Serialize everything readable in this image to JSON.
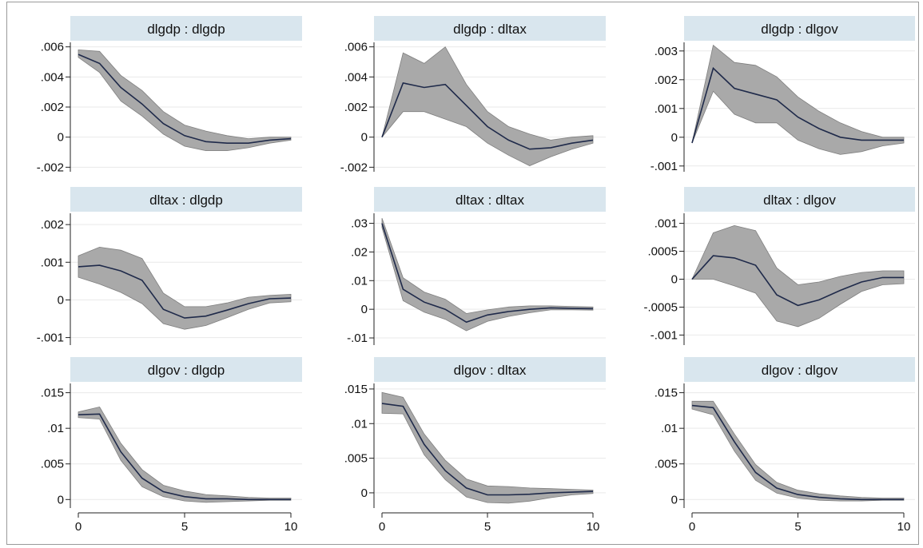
{
  "chart_data": [
    {
      "type": "line",
      "title": "dlgdp : dlgdp",
      "x": [
        0,
        1,
        2,
        3,
        4,
        5,
        6,
        7,
        8,
        9,
        10
      ],
      "series": [
        {
          "values": [
            0.0055,
            0.0049,
            0.0033,
            0.0022,
            0.0009,
            0.0001,
            -0.0003,
            -0.0004,
            -0.0004,
            -0.0002,
            -0.0001
          ]
        }
      ],
      "ci_lower": [
        0.0053,
        0.0043,
        0.0024,
        0.0014,
        0.0002,
        -0.0006,
        -0.0009,
        -0.0009,
        -0.0007,
        -0.0004,
        -0.0002
      ],
      "ci_upper": [
        0.0058,
        0.0057,
        0.0041,
        0.0031,
        0.0017,
        0.0008,
        0.0004,
        0.0001,
        -0.0001,
        0.0,
        0.0
      ],
      "ylim": [
        -0.0023,
        0.0063
      ],
      "yticks": [
        -0.002,
        0,
        0.002,
        0.004,
        0.006
      ],
      "ytick_labels": [
        "-.002",
        "0",
        ".002",
        ".004",
        ".006"
      ],
      "xticks": [],
      "xtick_labels": [],
      "grid": true
    },
    {
      "type": "line",
      "title": "dlgdp : dltax",
      "x": [
        0,
        1,
        2,
        3,
        4,
        5,
        6,
        7,
        8,
        9,
        10
      ],
      "series": [
        {
          "values": [
            0.0,
            0.0036,
            0.0033,
            0.0035,
            0.0021,
            0.0007,
            -0.0002,
            -0.0008,
            -0.0007,
            -0.0004,
            -0.0002
          ]
        }
      ],
      "ci_lower": [
        0.0,
        0.0017,
        0.0017,
        0.0012,
        0.0007,
        -0.0004,
        -0.0012,
        -0.0019,
        -0.0013,
        -0.0008,
        -0.0004
      ],
      "ci_upper": [
        0.0,
        0.0056,
        0.0049,
        0.006,
        0.0035,
        0.0017,
        0.0007,
        0.0002,
        -0.0002,
        0.0,
        0.0001
      ],
      "ylim": [
        -0.0023,
        0.0063
      ],
      "yticks": [
        -0.002,
        0,
        0.002,
        0.004,
        0.006
      ],
      "ytick_labels": [
        "-.002",
        "0",
        ".002",
        ".004",
        ".006"
      ],
      "xticks": [],
      "xtick_labels": [],
      "grid": true
    },
    {
      "type": "line",
      "title": "dlgdp : dlgov",
      "x": [
        0,
        1,
        2,
        3,
        4,
        5,
        6,
        7,
        8,
        9,
        10
      ],
      "series": [
        {
          "values": [
            -0.0002,
            0.0024,
            0.0017,
            0.0015,
            0.0013,
            0.0007,
            0.0003,
            0.0,
            -0.0001,
            -0.0001,
            -0.0001
          ]
        }
      ],
      "ci_lower": [
        -0.0002,
        0.0016,
        0.0008,
        0.0005,
        0.0005,
        -0.0001,
        -0.0004,
        -0.0006,
        -0.0005,
        -0.0003,
        -0.0002
      ],
      "ci_upper": [
        -0.0002,
        0.0032,
        0.0026,
        0.0025,
        0.0021,
        0.0014,
        0.0009,
        0.0005,
        0.0002,
        0.0,
        0.0
      ],
      "ylim": [
        -0.0012,
        0.0033
      ],
      "yticks": [
        -0.001,
        0,
        0.001,
        0.002,
        0.003
      ],
      "ytick_labels": [
        "-.001",
        "0",
        ".001",
        ".002",
        ".003"
      ],
      "xticks": [],
      "xtick_labels": [],
      "grid": true
    },
    {
      "type": "line",
      "title": "dltax : dlgdp",
      "x": [
        0,
        1,
        2,
        3,
        4,
        5,
        6,
        7,
        8,
        9,
        10
      ],
      "series": [
        {
          "values": [
            0.00088,
            0.00092,
            0.00077,
            0.00052,
            -0.00025,
            -0.00048,
            -0.00043,
            -0.00027,
            -0.0001,
            3e-05,
            5e-05
          ]
        }
      ],
      "ci_lower": [
        0.0006,
        0.00042,
        0.0002,
        -0.0001,
        -0.00063,
        -0.00078,
        -0.00068,
        -0.00047,
        -0.00025,
        -8e-05,
        -5e-05
      ],
      "ci_upper": [
        0.00117,
        0.0014,
        0.00132,
        0.0011,
        0.00018,
        -0.00018,
        -0.00018,
        -8e-05,
        7e-05,
        0.00012,
        0.00015
      ],
      "ylim": [
        -0.0012,
        0.0023
      ],
      "yticks": [
        -0.001,
        0,
        0.001,
        0.002
      ],
      "ytick_labels": [
        "-.001",
        "0",
        ".001",
        ".002"
      ],
      "xticks": [],
      "xtick_labels": [],
      "grid": true
    },
    {
      "type": "line",
      "title": "dltax : dltax",
      "x": [
        0,
        1,
        2,
        3,
        4,
        5,
        6,
        7,
        8,
        9,
        10
      ],
      "series": [
        {
          "values": [
            0.03,
            0.007,
            0.0025,
            0.0,
            -0.0045,
            -0.002,
            -0.0008,
            0.0,
            0.0005,
            0.0003,
            0.0002
          ]
        }
      ],
      "ci_lower": [
        0.0285,
        0.003,
        -0.001,
        -0.0035,
        -0.0075,
        -0.0042,
        -0.0025,
        -0.0012,
        -0.0002,
        -0.0002,
        -0.0003
      ],
      "ci_upper": [
        0.0318,
        0.011,
        0.006,
        0.0035,
        -0.0015,
        -0.0002,
        0.0008,
        0.0012,
        0.0012,
        0.001,
        0.0008
      ],
      "ylim": [
        -0.0125,
        0.0335
      ],
      "yticks": [
        -0.01,
        0,
        0.01,
        0.02,
        0.03
      ],
      "ytick_labels": [
        "-.01",
        "0",
        ".01",
        ".02",
        ".03"
      ],
      "xticks": [],
      "xtick_labels": [],
      "grid": true
    },
    {
      "type": "line",
      "title": "dltax : dlgov",
      "x": [
        0,
        1,
        2,
        3,
        4,
        5,
        6,
        7,
        8,
        9,
        10
      ],
      "series": [
        {
          "values": [
            0.0,
            0.00042,
            0.00038,
            0.00025,
            -0.00028,
            -0.00047,
            -0.00037,
            -0.0002,
            -5e-05,
            3e-05,
            3e-05
          ]
        }
      ],
      "ci_lower": [
        0.0,
        0.0,
        -0.00012,
        -0.00025,
        -0.00075,
        -0.00085,
        -0.0007,
        -0.00045,
        -0.00022,
        -0.0001,
        -8e-05
      ],
      "ci_upper": [
        0.0,
        0.00083,
        0.00096,
        0.00087,
        0.0002,
        -0.0001,
        -5e-05,
        5e-05,
        0.00012,
        0.00015,
        0.00015
      ],
      "ylim": [
        -0.00118,
        0.00118
      ],
      "yticks": [
        -0.001,
        -0.0005,
        0,
        0.0005,
        0.001
      ],
      "ytick_labels": [
        "-.001",
        "-.0005",
        "0",
        ".0005",
        ".001"
      ],
      "xticks": [],
      "xtick_labels": [],
      "grid": true
    },
    {
      "type": "line",
      "title": "dlgov : dlgdp",
      "x": [
        0,
        1,
        2,
        3,
        4,
        5,
        6,
        7,
        8,
        9,
        10
      ],
      "series": [
        {
          "values": [
            0.0119,
            0.012,
            0.0067,
            0.003,
            0.0011,
            0.0004,
            0.0001,
            0.0001,
            0.0,
            0.0,
            0.0
          ]
        }
      ],
      "ci_lower": [
        0.0115,
        0.0113,
        0.0055,
        0.0018,
        0.0004,
        -0.0002,
        -0.0004,
        -0.0003,
        -0.0002,
        -0.0001,
        -0.0001
      ],
      "ci_upper": [
        0.0123,
        0.013,
        0.0079,
        0.0042,
        0.002,
        0.0012,
        0.0007,
        0.0005,
        0.0003,
        0.0002,
        0.0002
      ],
      "ylim": [
        -0.0012,
        0.0163
      ],
      "yticks": [
        0,
        0.005,
        0.01,
        0.015
      ],
      "ytick_labels": [
        "0",
        ".005",
        ".01",
        ".015"
      ],
      "xticks": [
        0,
        5,
        10
      ],
      "xtick_labels": [
        "0",
        "5",
        "10"
      ],
      "grid": true
    },
    {
      "type": "line",
      "title": "dlgov : dltax",
      "x": [
        0,
        1,
        2,
        3,
        4,
        5,
        6,
        7,
        8,
        9,
        10
      ],
      "series": [
        {
          "values": [
            0.0129,
            0.0125,
            0.007,
            0.0032,
            0.0007,
            -0.0003,
            -0.0003,
            -0.0002,
            0.0,
            0.0001,
            0.0002
          ]
        }
      ],
      "ci_lower": [
        0.0115,
        0.0114,
        0.0055,
        0.0019,
        -0.0006,
        -0.0014,
        -0.0015,
        -0.0012,
        -0.0007,
        -0.0003,
        -0.0001
      ],
      "ci_upper": [
        0.0145,
        0.0138,
        0.0085,
        0.0047,
        0.002,
        0.001,
        0.0009,
        0.0007,
        0.0006,
        0.0005,
        0.0004
      ],
      "ylim": [
        -0.0022,
        0.0158
      ],
      "yticks": [
        0,
        0.005,
        0.01,
        0.015
      ],
      "ytick_labels": [
        "0",
        ".005",
        ".01",
        ".015"
      ],
      "xticks": [
        0,
        5,
        10
      ],
      "xtick_labels": [
        "0",
        "5",
        "10"
      ],
      "grid": true
    },
    {
      "type": "line",
      "title": "dlgov : dlgov",
      "x": [
        0,
        1,
        2,
        3,
        4,
        5,
        6,
        7,
        8,
        9,
        10
      ],
      "series": [
        {
          "values": [
            0.0132,
            0.0129,
            0.0081,
            0.0038,
            0.0016,
            0.0007,
            0.0003,
            0.0001,
            0.0,
            0.0,
            0.0
          ]
        }
      ],
      "ci_lower": [
        0.0127,
        0.0119,
        0.0068,
        0.0027,
        0.0009,
        0.0002,
        -0.0001,
        -0.0002,
        -0.0002,
        -0.0001,
        -0.0001
      ],
      "ci_upper": [
        0.0138,
        0.0138,
        0.0092,
        0.0049,
        0.0024,
        0.0013,
        0.0008,
        0.0005,
        0.0003,
        0.0002,
        0.0002
      ],
      "ylim": [
        -0.0012,
        0.0163
      ],
      "yticks": [
        0,
        0.005,
        0.01,
        0.015
      ],
      "ytick_labels": [
        "0",
        ".005",
        ".01",
        ".015"
      ],
      "xticks": [
        0,
        5,
        10
      ],
      "xtick_labels": [
        "0",
        "5",
        "10"
      ],
      "grid": true
    }
  ],
  "colors": {
    "line": "#1f2a4a",
    "ci_band": "#a9a9a9",
    "ci_edge": "#7f7f7f",
    "title_bar": "#d9e6ee",
    "grid": "#e9e9e9",
    "axis": "#222222"
  }
}
